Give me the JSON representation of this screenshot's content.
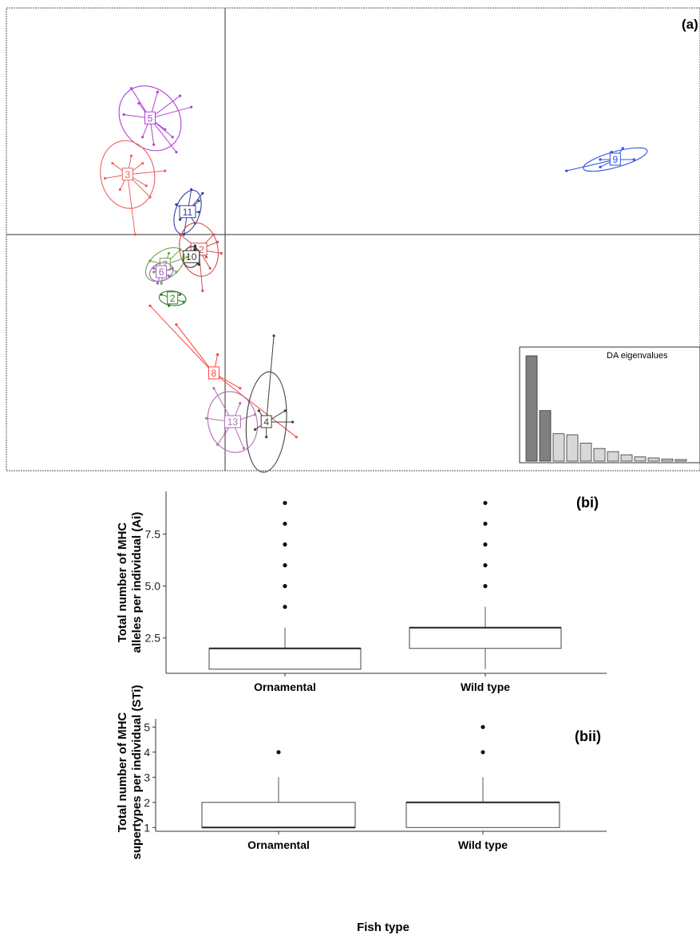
{
  "chart_data": [
    {
      "type": "scatter",
      "panel_label": "(a)",
      "description_kind": "DAPC scatter (discriminant analysis of principal components)",
      "grid": false,
      "groups": [
        {
          "label": "5",
          "color": "#b040d8",
          "center": [
            -2.0,
            3.1
          ],
          "points": [
            [
              -2.5,
              3.9
            ],
            [
              -1.8,
              3.8
            ],
            [
              -1.2,
              3.7
            ],
            [
              -0.9,
              3.4
            ],
            [
              -2.7,
              3.2
            ],
            [
              -2.3,
              3.5
            ],
            [
              -1.6,
              2.8
            ],
            [
              -1.4,
              2.6
            ],
            [
              -1.9,
              2.4
            ],
            [
              -1.3,
              2.2
            ],
            [
              -2.2,
              2.6
            ]
          ]
        },
        {
          "label": "3",
          "color": "#f06060",
          "center": [
            -2.6,
            1.6
          ],
          "points": [
            [
              -3.0,
              1.9
            ],
            [
              -3.2,
              1.5
            ],
            [
              -2.5,
              2.1
            ],
            [
              -2.2,
              1.9
            ],
            [
              -2.1,
              1.3
            ],
            [
              -2.8,
              1.2
            ],
            [
              -2.4,
              0.0
            ],
            [
              -2.0,
              1.0
            ],
            [
              -1.6,
              1.7
            ]
          ]
        },
        {
          "label": "11",
          "color": "#3040a0",
          "center": [
            -1.0,
            0.6
          ],
          "points": [
            [
              -0.9,
              1.2
            ],
            [
              -0.6,
              1.1
            ],
            [
              -0.7,
              0.9
            ],
            [
              -1.3,
              0.8
            ],
            [
              -1.2,
              0.4
            ],
            [
              -0.8,
              0.3
            ],
            [
              -1.1,
              0.0
            ],
            [
              -0.7,
              0.6
            ]
          ]
        },
        {
          "label": "12",
          "color": "#d05050",
          "center": [
            -0.7,
            -0.4
          ],
          "points": [
            [
              -0.3,
              0.0
            ],
            [
              -0.2,
              -0.2
            ],
            [
              -0.5,
              -0.6
            ],
            [
              -0.9,
              -0.3
            ],
            [
              -1.2,
              0.0
            ],
            [
              -0.6,
              -1.5
            ],
            [
              -0.4,
              -0.9
            ],
            [
              -0.1,
              -0.5
            ]
          ]
        },
        {
          "label": "10",
          "color": "#303030",
          "center": [
            -0.9,
            -0.6
          ],
          "points": [
            [
              -0.8,
              -0.3
            ],
            [
              -1.0,
              -0.5
            ],
            [
              -0.7,
              -0.8
            ],
            [
              -1.1,
              -0.7
            ],
            [
              -0.8,
              -0.4
            ]
          ]
        },
        {
          "label": "7",
          "color": "#70a040",
          "center": [
            -1.6,
            -0.8
          ],
          "points": [
            [
              -1.2,
              -0.4
            ],
            [
              -1.5,
              -0.5
            ],
            [
              -2.0,
              -0.7
            ],
            [
              -1.9,
              -1.0
            ],
            [
              -1.3,
              -1.0
            ],
            [
              -1.7,
              -1.3
            ],
            [
              -1.0,
              -0.6
            ]
          ]
        },
        {
          "label": "6",
          "color": "#a060c0",
          "center": [
            -1.7,
            -1.0
          ],
          "points": [
            [
              -1.9,
              -0.9
            ],
            [
              -1.5,
              -1.1
            ],
            [
              -1.8,
              -1.3
            ],
            [
              -1.4,
              -0.9
            ]
          ]
        },
        {
          "label": "2",
          "color": "#308030",
          "center": [
            -1.4,
            -1.7
          ],
          "points": [
            [
              -1.7,
              -1.6
            ],
            [
              -1.2,
              -1.6
            ],
            [
              -1.5,
              -1.9
            ],
            [
              -1.1,
              -1.8
            ]
          ]
        },
        {
          "label": "8",
          "color": "#ff4040",
          "center": [
            -0.3,
            -3.7
          ],
          "points": [
            [
              -2.0,
              -1.9
            ],
            [
              1.9,
              -5.4
            ],
            [
              -1.3,
              -2.4
            ],
            [
              0.4,
              -4.1
            ],
            [
              -0.2,
              -3.2
            ]
          ]
        },
        {
          "label": "13",
          "color": "#b070b0",
          "center": [
            0.2,
            -5.0
          ],
          "points": [
            [
              -0.3,
              -4.1
            ],
            [
              0.4,
              -4.5
            ],
            [
              -0.2,
              -5.6
            ],
            [
              0.5,
              -5.7
            ],
            [
              0.0,
              -5.3
            ],
            [
              -0.5,
              -4.9
            ],
            [
              0.8,
              -4.8
            ]
          ]
        },
        {
          "label": "4",
          "color": "#404040",
          "center": [
            1.1,
            -5.0
          ],
          "points": [
            [
              1.3,
              -2.7
            ],
            [
              1.6,
              -4.7
            ],
            [
              1.8,
              -5.0
            ],
            [
              0.8,
              -5.2
            ],
            [
              1.1,
              -5.4
            ],
            [
              0.9,
              -4.7
            ]
          ]
        },
        {
          "label": "9",
          "color": "#3050e0",
          "center": [
            10.4,
            2.0
          ],
          "points": [
            [
              9.1,
              1.7
            ],
            [
              10.0,
              1.8
            ],
            [
              10.6,
              2.3
            ],
            [
              10.9,
              2.0
            ],
            [
              10.3,
              2.2
            ],
            [
              10.0,
              2.0
            ]
          ]
        }
      ],
      "inset": {
        "type": "bar",
        "title": "DA eigenvalues",
        "values": [
          100,
          48,
          26,
          25,
          17,
          12,
          9,
          6,
          4,
          3,
          2,
          1.5
        ],
        "colors": [
          "#808080",
          "#808080",
          "#d8d8d8",
          "#d8d8d8",
          "#d8d8d8",
          "#d8d8d8",
          "#d8d8d8",
          "#d8d8d8",
          "#d8d8d8",
          "#d8d8d8",
          "#d8d8d8",
          "#d8d8d8"
        ]
      }
    },
    {
      "type": "box",
      "panel_label": "(bi)",
      "ylabel": "Total number of MHC\nalleles per individual (Ai)",
      "xlabel": "",
      "categories": [
        "Ornamental",
        "Wild type"
      ],
      "yticks": [
        2.5,
        5.0,
        7.5
      ],
      "ytick_labels": [
        "2.5",
        "5.0",
        "7.5"
      ],
      "ylim": [
        0.8,
        9.4
      ],
      "boxes": [
        {
          "name": "Ornamental",
          "whisker_low": 1,
          "q1": 1,
          "median": 2,
          "q3": 2,
          "whisker_high": 3,
          "outliers": [
            4,
            5,
            6,
            7,
            8,
            9
          ]
        },
        {
          "name": "Wild type",
          "whisker_low": 1,
          "q1": 2,
          "median": 3,
          "q3": 3,
          "whisker_high": 4,
          "outliers": [
            5,
            6,
            7,
            8,
            9
          ]
        }
      ]
    },
    {
      "type": "box",
      "panel_label": "(bii)",
      "ylabel": "Total number of MHC\nsupertypes per individual (STi)",
      "xlabel": "Fish type",
      "categories": [
        "Ornamental",
        "Wild type"
      ],
      "yticks": [
        1,
        2,
        3,
        4,
        5
      ],
      "ytick_labels": [
        "1",
        "2",
        "3",
        "4",
        "5"
      ],
      "ylim": [
        0.85,
        5.2
      ],
      "boxes": [
        {
          "name": "Ornamental",
          "whisker_low": 1,
          "q1": 1,
          "median": 1,
          "q3": 2,
          "whisker_high": 3,
          "outliers": [
            4
          ]
        },
        {
          "name": "Wild type",
          "whisker_low": 1,
          "q1": 1,
          "median": 2,
          "q3": 2,
          "whisker_high": 3,
          "outliers": [
            4,
            5
          ]
        }
      ]
    }
  ]
}
